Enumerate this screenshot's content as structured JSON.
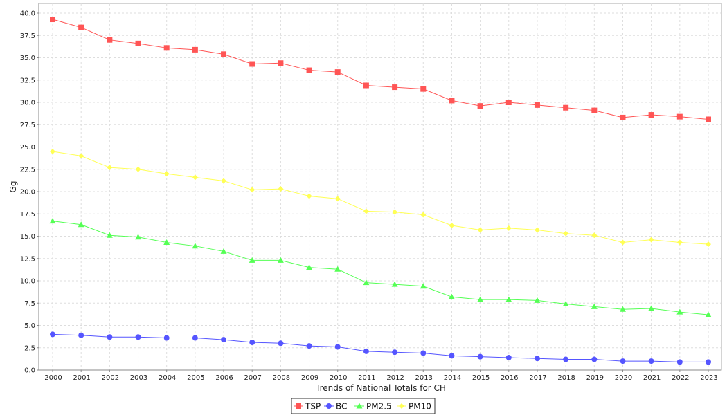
{
  "chart_data": {
    "type": "line",
    "title": "",
    "xlabel": "Trends of National Totals for CH",
    "ylabel": "Gg",
    "ylim": [
      0,
      40
    ],
    "yticks": [
      "0.0",
      "2.5",
      "5.0",
      "7.5",
      "10.0",
      "12.5",
      "15.0",
      "17.5",
      "20.0",
      "22.5",
      "25.0",
      "27.5",
      "30.0",
      "32.5",
      "35.0",
      "37.5",
      "40.0"
    ],
    "grid": true,
    "legend_position": "bottom-center",
    "categories": [
      "2000",
      "2001",
      "2002",
      "2003",
      "2004",
      "2005",
      "2006",
      "2007",
      "2008",
      "2009",
      "2010",
      "2011",
      "2012",
      "2013",
      "2014",
      "2015",
      "2016",
      "2017",
      "2018",
      "2019",
      "2020",
      "2021",
      "2022",
      "2023"
    ],
    "series": [
      {
        "name": "TSP",
        "color": "#ff5555",
        "marker": "square",
        "values": [
          39.3,
          38.4,
          37.0,
          36.6,
          36.1,
          35.9,
          35.4,
          34.3,
          34.4,
          33.6,
          33.4,
          31.9,
          31.7,
          31.5,
          30.2,
          29.6,
          30.0,
          29.7,
          29.4,
          29.1,
          28.3,
          28.6,
          28.4,
          28.1
        ]
      },
      {
        "name": "BC",
        "color": "#5555ff",
        "marker": "circle",
        "values": [
          4.0,
          3.9,
          3.7,
          3.7,
          3.6,
          3.6,
          3.4,
          3.1,
          3.0,
          2.7,
          2.6,
          2.1,
          2.0,
          1.9,
          1.6,
          1.5,
          1.4,
          1.3,
          1.2,
          1.2,
          1.0,
          1.0,
          0.9,
          0.9
        ]
      },
      {
        "name": "PM2.5",
        "color": "#55ff55",
        "marker": "triangle",
        "values": [
          16.7,
          16.3,
          15.1,
          14.9,
          14.3,
          13.9,
          13.3,
          12.3,
          12.3,
          11.5,
          11.3,
          9.8,
          9.6,
          9.4,
          8.2,
          7.9,
          7.9,
          7.8,
          7.4,
          7.1,
          6.8,
          6.9,
          6.5,
          6.2
        ]
      },
      {
        "name": "PM10",
        "color": "#ffff55",
        "marker": "diamond",
        "values": [
          24.5,
          24.0,
          22.7,
          22.5,
          22.0,
          21.6,
          21.2,
          20.2,
          20.3,
          19.5,
          19.2,
          17.8,
          17.7,
          17.4,
          16.2,
          15.7,
          15.9,
          15.7,
          15.3,
          15.1,
          14.3,
          14.6,
          14.3,
          14.1
        ]
      }
    ]
  }
}
